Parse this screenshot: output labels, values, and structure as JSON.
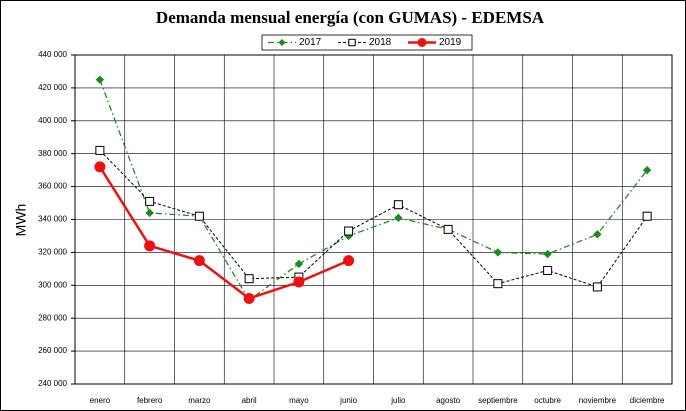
{
  "chart_data": {
    "type": "line",
    "title": "Demanda mensual energía (con GUMAS) - EDEMSA",
    "y_label": "MWh",
    "categories": [
      "enero",
      "febrero",
      "marzo",
      "abril",
      "mayo",
      "junio",
      "julio",
      "agosto",
      "septiembre",
      "octubre",
      "noviembre",
      "diciembre"
    ],
    "series": [
      {
        "name": "2017",
        "color": "#1e8a1e",
        "dash": "6 3 1.5 3",
        "marker": "diamond",
        "width": 1.3,
        "values": [
          425000,
          344000,
          342000,
          291000,
          313000,
          330000,
          341000,
          334000,
          320000,
          319000,
          331000,
          370000
        ]
      },
      {
        "name": "2018",
        "color": "#000000",
        "dash": "3 2",
        "marker": "square",
        "width": 1,
        "values": [
          382000,
          351000,
          342000,
          304000,
          305000,
          333000,
          349000,
          334000,
          301000,
          309000,
          299000,
          342000
        ]
      },
      {
        "name": "2019",
        "color": "#ee1111",
        "dash": "none",
        "marker": "circle",
        "width": 2.5,
        "values": [
          372000,
          324000,
          315000,
          292000,
          302000,
          315000,
          null,
          null,
          null,
          null,
          null,
          null
        ]
      }
    ],
    "ylim": [
      240000,
      440000
    ],
    "yticks": [
      {
        "value": 240000,
        "label": "240 000"
      },
      {
        "value": 260000,
        "label": "260 000"
      },
      {
        "value": 280000,
        "label": "280 000"
      },
      {
        "value": 300000,
        "label": "300 000"
      },
      {
        "value": 320000,
        "label": "320 000"
      },
      {
        "value": 340000,
        "label": "340 000"
      },
      {
        "value": 360000,
        "label": "360 000"
      },
      {
        "value": 380000,
        "label": "380 000"
      },
      {
        "value": 400000,
        "label": "400 000"
      },
      {
        "value": 420000,
        "label": "420 000"
      },
      {
        "value": 440000,
        "label": "440 000"
      }
    ],
    "grid": true,
    "legend": "top"
  }
}
